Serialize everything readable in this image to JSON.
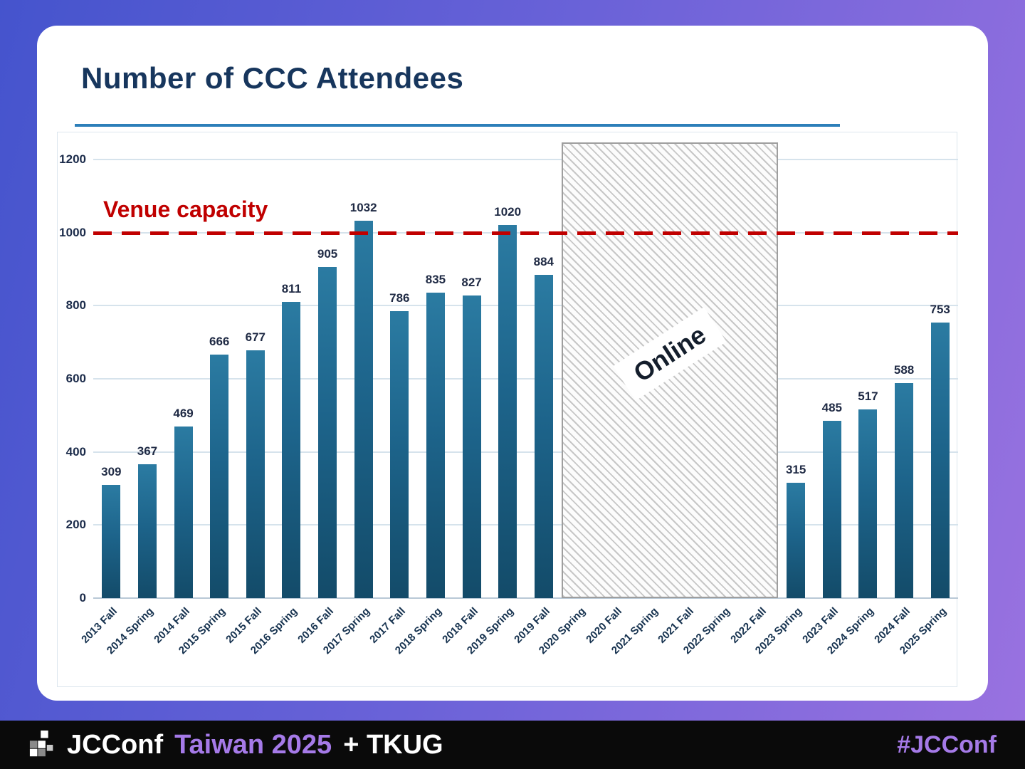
{
  "slide": {
    "title": "Number of CCC Attendees"
  },
  "chart_data": {
    "type": "bar",
    "title": "Number of CCC Attendees",
    "categories": [
      "2013 Fall",
      "2014 Spring",
      "2014 Fall",
      "2015 Spring",
      "2015 Fall",
      "2016 Spring",
      "2016 Fall",
      "2017 Spring",
      "2017 Fall",
      "2018 Spring",
      "2018 Fall",
      "2019 Spring",
      "2019 Fall",
      "2020 Spring",
      "2020 Fall",
      "2021 Spring",
      "2021 Fall",
      "2022 Spring",
      "2022 Fall",
      "2023 Spring",
      "2023 Fall",
      "2024 Spring",
      "2024 Fall",
      "2025 Spring"
    ],
    "values": [
      309,
      367,
      469,
      666,
      677,
      811,
      905,
      1032,
      786,
      835,
      827,
      1020,
      884,
      null,
      null,
      null,
      null,
      null,
      null,
      315,
      485,
      517,
      588,
      753
    ],
    "ylim": [
      0,
      1200
    ],
    "yticks": [
      0,
      200,
      400,
      600,
      800,
      1000,
      1200
    ],
    "grid": true,
    "bar_color": "#1d648b",
    "value_label_color": "#1f2a44",
    "venue_capacity": {
      "value": 1000,
      "label": "Venue capacity",
      "color": "#c00000"
    },
    "online_region": {
      "start_index": 13,
      "end_index": 18,
      "label": "Online"
    }
  },
  "footer": {
    "brand": "JCConf",
    "event": "Taiwan 2025",
    "plus": "+ TKUG",
    "hashtag": "#JCConf",
    "accent_color": "#a57ae8"
  }
}
